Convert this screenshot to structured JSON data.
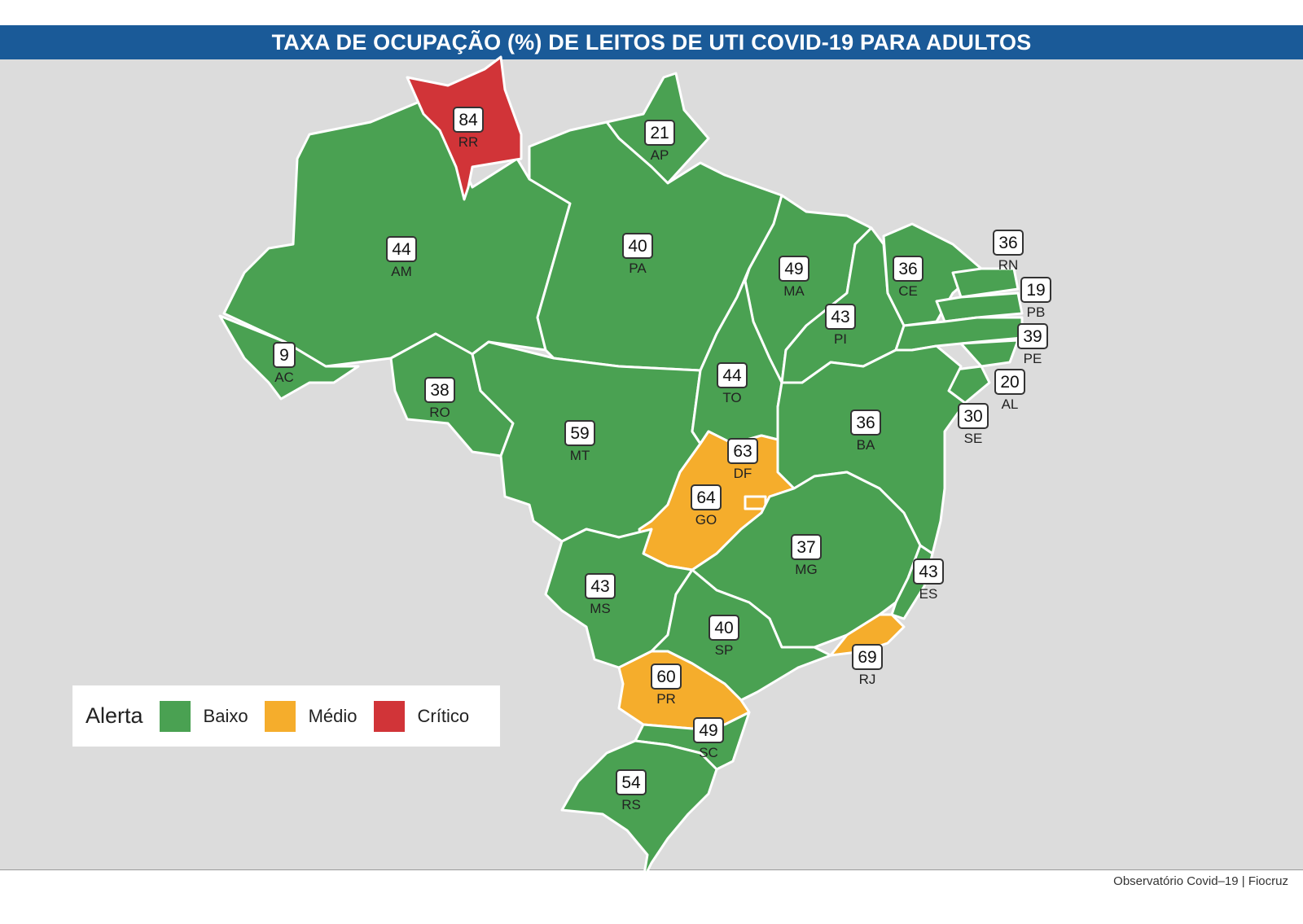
{
  "title": "TAXA DE OCUPAÇÃO (%) DE LEITOS DE UTI COVID-19 PARA ADULTOS",
  "source": "Observatório Covid–19 | Fiocruz",
  "legend": {
    "title": "Alerta",
    "items": [
      {
        "label": "Baixo",
        "color": "#4aa152"
      },
      {
        "label": "Médio",
        "color": "#f5ad2c"
      },
      {
        "label": "Crítico",
        "color": "#d13438"
      }
    ]
  },
  "colors": {
    "baixo": "#4aa152",
    "medio": "#f5ad2c",
    "critico": "#d13438",
    "header": "#1a5a98",
    "background": "#dcdcdc"
  },
  "states": [
    {
      "uf": "RR",
      "value": "84",
      "level": "Crítico"
    },
    {
      "uf": "AP",
      "value": "21",
      "level": "Baixo"
    },
    {
      "uf": "AM",
      "value": "44",
      "level": "Baixo"
    },
    {
      "uf": "PA",
      "value": "40",
      "level": "Baixo"
    },
    {
      "uf": "MA",
      "value": "49",
      "level": "Baixo"
    },
    {
      "uf": "CE",
      "value": "36",
      "level": "Baixo"
    },
    {
      "uf": "RN",
      "value": "36",
      "level": "Baixo"
    },
    {
      "uf": "PB",
      "value": "19",
      "level": "Baixo"
    },
    {
      "uf": "PE",
      "value": "39",
      "level": "Baixo"
    },
    {
      "uf": "AL",
      "value": "20",
      "level": "Baixo"
    },
    {
      "uf": "SE",
      "value": "30",
      "level": "Baixo"
    },
    {
      "uf": "PI",
      "value": "43",
      "level": "Baixo"
    },
    {
      "uf": "AC",
      "value": "9",
      "level": "Baixo"
    },
    {
      "uf": "RO",
      "value": "38",
      "level": "Baixo"
    },
    {
      "uf": "MT",
      "value": "59",
      "level": "Baixo"
    },
    {
      "uf": "TO",
      "value": "44",
      "level": "Baixo"
    },
    {
      "uf": "BA",
      "value": "36",
      "level": "Baixo"
    },
    {
      "uf": "DF",
      "value": "63",
      "level": "Médio"
    },
    {
      "uf": "GO",
      "value": "64",
      "level": "Médio"
    },
    {
      "uf": "MG",
      "value": "37",
      "level": "Baixo"
    },
    {
      "uf": "ES",
      "value": "43",
      "level": "Baixo"
    },
    {
      "uf": "MS",
      "value": "43",
      "level": "Baixo"
    },
    {
      "uf": "SP",
      "value": "40",
      "level": "Baixo"
    },
    {
      "uf": "RJ",
      "value": "69",
      "level": "Médio"
    },
    {
      "uf": "PR",
      "value": "60",
      "level": "Médio"
    },
    {
      "uf": "SC",
      "value": "49",
      "level": "Baixo"
    },
    {
      "uf": "RS",
      "value": "54",
      "level": "Baixo"
    }
  ]
}
